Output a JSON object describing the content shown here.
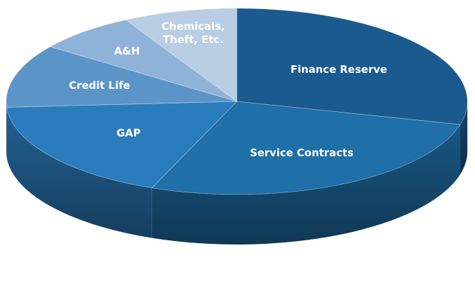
{
  "chart_data": {
    "type": "pie",
    "title": "",
    "slices": [
      {
        "label": "Finance Reserve",
        "lines": [
          "Finance Reserve"
        ],
        "value": 29,
        "color": "#1a5a8f"
      },
      {
        "label": "Service Contracts",
        "lines": [
          "Service Contracts"
        ],
        "value": 27,
        "color": "#1f6fa8"
      },
      {
        "label": "GAP",
        "lines": [
          "GAP"
        ],
        "value": 18,
        "color": "#2b7cbc"
      },
      {
        "label": "Credit Life",
        "lines": [
          "Credit Life"
        ],
        "value": 11,
        "color": "#5b95c8"
      },
      {
        "label": "A&H",
        "lines": [
          "A&H"
        ],
        "value": 7,
        "color": "#8fb2d8"
      },
      {
        "label": "Chemicals, Theft, Etc.",
        "lines": [
          "Chemicals,",
          "Theft, Etc."
        ],
        "value": 8,
        "color": "#b9cde5"
      }
    ]
  }
}
